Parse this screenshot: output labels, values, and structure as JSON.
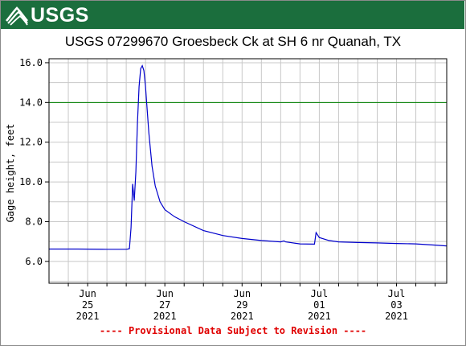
{
  "header": {
    "logo_text": "USGS"
  },
  "chart_data": {
    "type": "line",
    "title": "USGS 07299670 Groesbeck Ck at SH 6 nr Quanah, TX",
    "ylabel": "Gage height, feet",
    "xlabel": "",
    "ylim": [
      4.9,
      16.2
    ],
    "xlim_days": [
      0,
      10.3
    ],
    "yticks": [
      "16.0",
      "14.0",
      "12.0",
      "10.0",
      "8.0",
      "6.0"
    ],
    "ytick_values": [
      16,
      14,
      12,
      10,
      8,
      6
    ],
    "xticks": [
      {
        "label": [
          "Jun",
          "25",
          "2021"
        ]
      },
      {
        "label": [
          "Jun",
          "27",
          "2021"
        ]
      },
      {
        "label": [
          "Jun",
          "29",
          "2021"
        ]
      },
      {
        "label": [
          "Jul",
          "01",
          "2021"
        ]
      },
      {
        "label": [
          "Jul",
          "03",
          "2021"
        ]
      }
    ],
    "reference_line": {
      "value": 14.0,
      "color": "#008000"
    },
    "grid": true,
    "line_color": "#0000cc",
    "series": [
      {
        "x": [
          "2021-06-24 00:00",
          "2021-06-24 18:00",
          "2021-06-25 12:00",
          "2021-06-26 00:00",
          "2021-06-26 01:00",
          "2021-06-26 02:00",
          "2021-06-26 03:00",
          "2021-06-26 04:00",
          "2021-06-26 05:00",
          "2021-06-26 06:00",
          "2021-06-26 07:00",
          "2021-06-26 08:00",
          "2021-06-26 09:00",
          "2021-06-26 10:00",
          "2021-06-26 11:00",
          "2021-06-26 12:00",
          "2021-06-26 14:00",
          "2021-06-26 16:00",
          "2021-06-26 18:00",
          "2021-06-26 21:00",
          "2021-06-27 00:00",
          "2021-06-27 06:00",
          "2021-06-27 12:00",
          "2021-06-28 00:00",
          "2021-06-28 12:00",
          "2021-06-29 00:00",
          "2021-06-29 12:00",
          "2021-06-30 00:00",
          "2021-06-30 02:00",
          "2021-06-30 03:00",
          "2021-06-30 12:00",
          "2021-06-30 21:00",
          "2021-06-30 22:00",
          "2021-07-01 00:00",
          "2021-07-01 06:00",
          "2021-07-01 12:00",
          "2021-07-02 00:00",
          "2021-07-02 12:00",
          "2021-07-03 00:00",
          "2021-07-03 12:00",
          "2021-07-04 00:00",
          "2021-07-04 07:00"
        ],
        "y": [
          6.62,
          6.62,
          6.61,
          6.61,
          6.62,
          6.64,
          7.7,
          9.9,
          9.05,
          10.5,
          13.0,
          14.8,
          15.7,
          15.85,
          15.6,
          14.8,
          12.5,
          10.8,
          9.8,
          9.0,
          8.6,
          8.25,
          8.0,
          7.55,
          7.3,
          7.15,
          7.05,
          6.98,
          7.03,
          6.98,
          6.88,
          6.87,
          7.45,
          7.2,
          7.05,
          6.98,
          6.95,
          6.93,
          6.9,
          6.88,
          6.82,
          6.78
        ]
      }
    ]
  },
  "footer": {
    "text": "---- Provisional Data Subject to Revision ----"
  }
}
